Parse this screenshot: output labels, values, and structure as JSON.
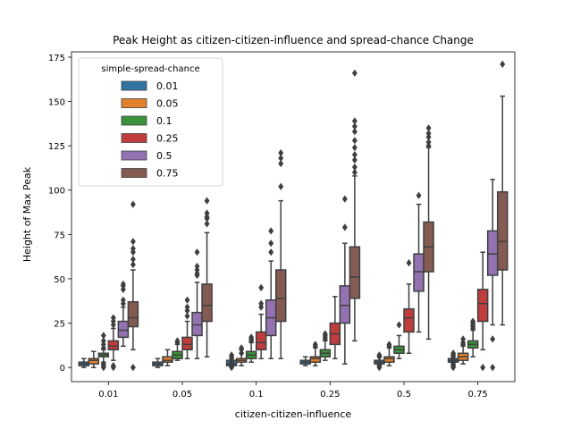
{
  "chart_data": {
    "type": "box",
    "title": "Peak Height as citizen-citizen-influence and spread-chance Change",
    "xlabel": "citizen-citizen-influence",
    "ylabel": "Height of Max Peak",
    "ylim": [
      -8,
      178
    ],
    "yticks": [
      0,
      25,
      50,
      75,
      100,
      125,
      150,
      175
    ],
    "categories": [
      "0.01",
      "0.05",
      "0.1",
      "0.25",
      "0.5",
      "0.75"
    ],
    "legend": {
      "title": "simple-spread-chance",
      "location": "upper-left"
    },
    "series": [
      {
        "name": "0.01",
        "color": "#3274a1",
        "boxes": [
          {
            "whislo": 0,
            "q1": 1,
            "med": 2,
            "q3": 3,
            "whishi": 5,
            "fliers": []
          },
          {
            "whislo": 0,
            "q1": 1,
            "med": 2,
            "q3": 3,
            "whishi": 5,
            "fliers": []
          },
          {
            "whislo": 0,
            "q1": 1,
            "med": 2,
            "q3": 4,
            "whishi": 6,
            "fliers": [
              0,
              1,
              2,
              3,
              5,
              7
            ]
          },
          {
            "whislo": 1,
            "q1": 2,
            "med": 3,
            "q3": 4,
            "whishi": 6,
            "fliers": []
          },
          {
            "whislo": 1,
            "q1": 2,
            "med": 3,
            "q3": 4,
            "whishi": 6,
            "fliers": [
              0,
              1,
              2,
              6,
              7
            ]
          },
          {
            "whislo": 1,
            "q1": 3,
            "med": 4,
            "q3": 5,
            "whishi": 7,
            "fliers": [
              0,
              1,
              2,
              3,
              4,
              6,
              7,
              8
            ]
          }
        ]
      },
      {
        "name": "0.05",
        "color": "#e1812c",
        "boxes": [
          {
            "whislo": 0,
            "q1": 2,
            "med": 4,
            "q3": 5,
            "whishi": 9,
            "fliers": []
          },
          {
            "whislo": 1,
            "q1": 3,
            "med": 4,
            "q3": 6,
            "whishi": 10,
            "fliers": []
          },
          {
            "whislo": 1,
            "q1": 3,
            "med": 4,
            "q3": 5,
            "whishi": 8,
            "fliers": [
              8,
              10,
              11
            ]
          },
          {
            "whislo": 1,
            "q1": 3,
            "med": 5,
            "q3": 6,
            "whishi": 11,
            "fliers": [
              12,
              13
            ]
          },
          {
            "whislo": 1,
            "q1": 3,
            "med": 5,
            "q3": 6,
            "whishi": 11,
            "fliers": [
              12,
              13
            ]
          },
          {
            "whislo": 2,
            "q1": 4,
            "med": 6,
            "q3": 8,
            "whishi": 12,
            "fliers": [
              13,
              14,
              16
            ]
          }
        ]
      },
      {
        "name": "0.1",
        "color": "#3a923a",
        "boxes": [
          {
            "whislo": 3,
            "q1": 6,
            "med": 7,
            "q3": 8,
            "whishi": 10,
            "fliers": [
              0,
              1,
              2,
              11,
              13,
              15,
              18
            ]
          },
          {
            "whislo": 4,
            "q1": 5,
            "med": 7,
            "q3": 9,
            "whishi": 13,
            "fliers": [
              14,
              15
            ]
          },
          {
            "whislo": 3,
            "q1": 5,
            "med": 7,
            "q3": 9,
            "whishi": 14,
            "fliers": [
              15,
              16,
              17
            ]
          },
          {
            "whislo": 4,
            "q1": 6,
            "med": 8,
            "q3": 10,
            "whishi": 15,
            "fliers": [
              16,
              17,
              18,
              19
            ]
          },
          {
            "whislo": 5,
            "q1": 8,
            "med": 10,
            "q3": 12,
            "whishi": 18,
            "fliers": [
              24
            ]
          },
          {
            "whislo": 6,
            "q1": 11,
            "med": 13,
            "q3": 15,
            "whishi": 21,
            "fliers": [
              22,
              23,
              24,
              25,
              26
            ]
          }
        ]
      },
      {
        "name": "0.25",
        "color": "#c03d3e",
        "boxes": [
          {
            "whislo": 4,
            "q1": 10,
            "med": 12,
            "q3": 15,
            "whishi": 22,
            "fliers": [
              0,
              1,
              24,
              26,
              28
            ]
          },
          {
            "whislo": 5,
            "q1": 10,
            "med": 13,
            "q3": 17,
            "whishi": 26,
            "fliers": [
              29,
              32,
              34,
              38
            ]
          },
          {
            "whislo": 5,
            "q1": 10,
            "med": 14,
            "q3": 20,
            "whishi": 30,
            "fliers": [
              34,
              36,
              45
            ]
          },
          {
            "whislo": 5,
            "q1": 13,
            "med": 19,
            "q3": 25,
            "whishi": 40,
            "fliers": []
          },
          {
            "whislo": 8,
            "q1": 20,
            "med": 28,
            "q3": 33,
            "whishi": 47,
            "fliers": [
              59
            ]
          },
          {
            "whislo": 10,
            "q1": 26,
            "med": 36,
            "q3": 44,
            "whishi": 65,
            "fliers": [
              0
            ]
          }
        ]
      },
      {
        "name": "0.5",
        "color": "#9372b2",
        "boxes": [
          {
            "whislo": 12,
            "q1": 17,
            "med": 21,
            "q3": 26,
            "whishi": 34,
            "fliers": [
              36,
              38,
              44,
              46,
              47
            ]
          },
          {
            "whislo": 5,
            "q1": 18,
            "med": 24,
            "q3": 31,
            "whishi": 48,
            "fliers": [
              52,
              53,
              55,
              57,
              65
            ]
          },
          {
            "whislo": 5,
            "q1": 18,
            "med": 28,
            "q3": 38,
            "whishi": 60,
            "fliers": [
              65,
              70,
              77
            ]
          },
          {
            "whislo": 2,
            "q1": 25,
            "med": 35,
            "q3": 46,
            "whishi": 70,
            "fliers": [
              79,
              95
            ]
          },
          {
            "whislo": 20,
            "q1": 43,
            "med": 54,
            "q3": 64,
            "whishi": 92,
            "fliers": [
              97
            ]
          },
          {
            "whislo": 24,
            "q1": 52,
            "med": 64,
            "q3": 77,
            "whishi": 106,
            "fliers": [
              0,
              16
            ]
          }
        ]
      },
      {
        "name": "0.75",
        "color": "#845b53",
        "boxes": [
          {
            "whislo": 10,
            "q1": 23,
            "med": 28,
            "q3": 37,
            "whishi": 55,
            "fliers": [
              0,
              58,
              61,
              65,
              67,
              71,
              92
            ]
          },
          {
            "whislo": 6,
            "q1": 26,
            "med": 35,
            "q3": 47,
            "whishi": 76,
            "fliers": [
              81,
              84,
              85,
              87,
              94
            ]
          },
          {
            "whislo": 5,
            "q1": 26,
            "med": 39,
            "q3": 55,
            "whishi": 94,
            "fliers": [
              102,
              115,
              118,
              121
            ]
          },
          {
            "whislo": 15,
            "q1": 39,
            "med": 51,
            "q3": 68,
            "whishi": 108,
            "fliers": [
              110,
              113,
              117,
              120,
              124,
              128,
              133,
              136,
              139,
              166
            ]
          },
          {
            "whislo": 16,
            "q1": 54,
            "med": 68,
            "q3": 82,
            "whishi": 124,
            "fliers": [
              125,
              127,
              130,
              132,
              135
            ]
          },
          {
            "whislo": 24,
            "q1": 55,
            "med": 71,
            "q3": 99,
            "whishi": 153,
            "fliers": [
              171
            ]
          }
        ]
      }
    ]
  }
}
